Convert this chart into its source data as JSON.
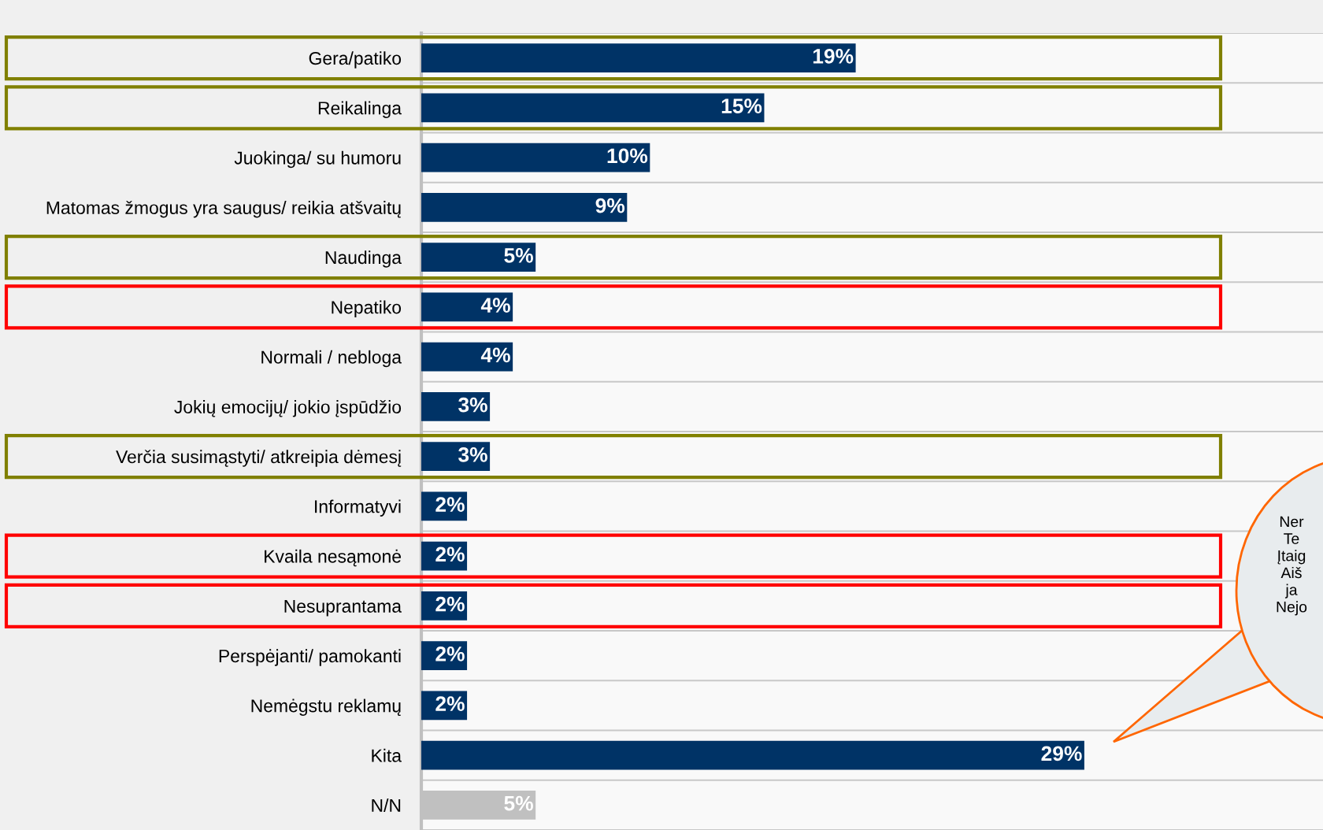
{
  "chart_data": {
    "type": "bar",
    "orientation": "horizontal",
    "data_labels": true,
    "categories": [
      "Gera/patiko",
      "Reikalinga",
      "Juokinga/ su humoru",
      "Matomas žmogus yra saugus/ reikia atšvaitų",
      "Naudinga",
      "Nepatiko",
      "Normali / nebloga",
      "Jokių emocijų/ jokio įspūdžio",
      "Verčia susimąstyti/ atkreipia dėmesį",
      "Informatyvi",
      "Kvaila nesąmonė",
      "Nesuprantama",
      "Perspėjanti/ pamokanti",
      "Nemėgstu reklamų",
      "Kita",
      "N/N"
    ],
    "values": [
      19,
      15,
      10,
      9,
      5,
      4,
      4,
      3,
      3,
      2,
      2,
      2,
      2,
      2,
      29,
      5
    ],
    "value_labels": [
      "19%",
      "15%",
      "10%",
      "9%",
      "5%",
      "4%",
      "4%",
      "3%",
      "3%",
      "2%",
      "2%",
      "2%",
      "2%",
      "2%",
      "29%",
      "5%"
    ],
    "colors": [
      "#003366",
      "#003366",
      "#003366",
      "#003366",
      "#003366",
      "#003366",
      "#003366",
      "#003366",
      "#003366",
      "#003366",
      "#003366",
      "#003366",
      "#003366",
      "#003366",
      "#003366",
      "#c0c0c0"
    ],
    "annotations": [
      "Ner\nTe\nĮtaig\nAiš\nja\nNejo"
    ]
  }
}
